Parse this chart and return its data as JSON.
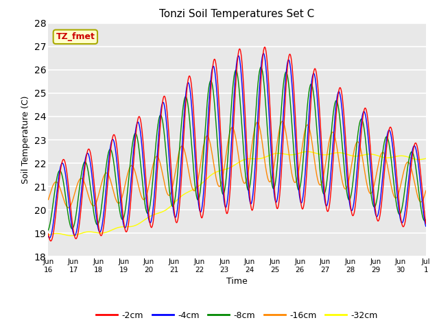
{
  "title": "Tonzi Soil Temperatures Set C",
  "xlabel": "Time",
  "ylabel": "Soil Temperature (C)",
  "ylim": [
    18.0,
    28.0
  ],
  "yticks": [
    18.0,
    19.0,
    20.0,
    21.0,
    22.0,
    23.0,
    24.0,
    25.0,
    26.0,
    27.0,
    28.0
  ],
  "xtick_labels": [
    "Jun\n16",
    "Jun\n17",
    "Jun\n18",
    "Jun\n19",
    "Jun\n20",
    "Jun\n21",
    "Jun\n22",
    "Jun\n23",
    "Jun\n24",
    "Jun\n25",
    "Jun\n26",
    "Jun\n27",
    "Jun\n28",
    "Jun\n29",
    "Jun\n30",
    "Jul\n1"
  ],
  "bg_color": "#e8e8e8",
  "fig_color": "#ffffff",
  "line_colors": {
    "-2cm": "#ff0000",
    "-4cm": "#0000ff",
    "-8cm": "#008800",
    "-16cm": "#ff8800",
    "-32cm": "#ffff00"
  },
  "annotation_text": "TZ_fmet",
  "annotation_bg": "#ffffcc",
  "annotation_fg": "#cc0000",
  "legend_labels": [
    "-2cm",
    "-4cm",
    "-8cm",
    "-16cm",
    "-32cm"
  ],
  "n_days": 15,
  "n_points_per_day": 96
}
